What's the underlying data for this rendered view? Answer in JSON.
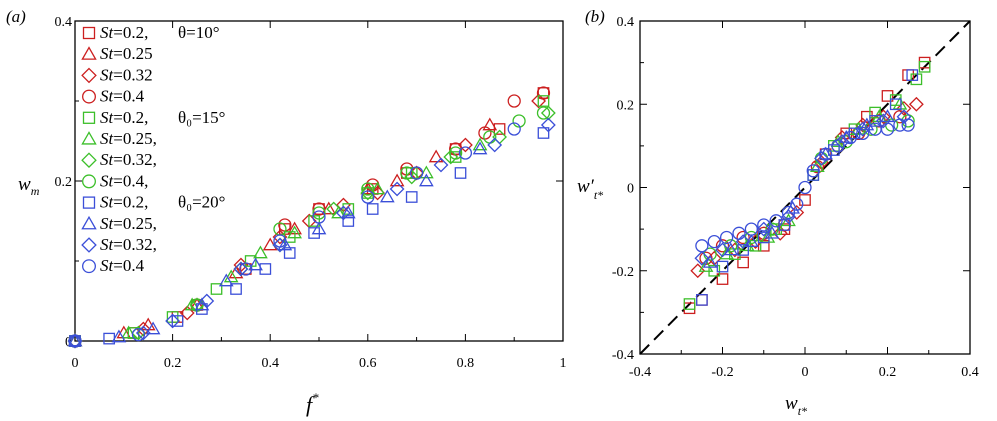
{
  "colors": {
    "red": "#cc1f1f",
    "green": "#3cbf2a",
    "blue": "#3b4fd8",
    "axis": "#000000"
  },
  "chart_data": [
    {
      "panel": "(a)",
      "type": "scatter",
      "xlabel": "f",
      "xlabel_sup": "*",
      "ylabel": "w",
      "ylabel_sub": "m",
      "xlim": [
        0,
        1
      ],
      "ylim": [
        0,
        0.4
      ],
      "xticks": [
        0,
        0.2,
        0.4,
        0.6,
        0.8,
        1
      ],
      "xtick_labels": [
        "0",
        "0.2",
        "0.4",
        "0.6",
        "0.8",
        "1"
      ],
      "yticks": [
        0,
        0.2,
        0.4
      ],
      "ytick_labels": [
        "0",
        "0.2",
        "0.4"
      ],
      "legend": [
        {
          "st": "St",
          "val": "=0.2,",
          "extra": "θ=10°",
          "marker": "square",
          "color": "red"
        },
        {
          "st": "St",
          "val": "=0.25",
          "extra": "",
          "marker": "triangle",
          "color": "red"
        },
        {
          "st": "St",
          "val": "=0.32",
          "extra": "",
          "marker": "diamond",
          "color": "red"
        },
        {
          "st": "St",
          "val": "=0.4",
          "extra": "",
          "marker": "circle",
          "color": "red"
        },
        {
          "st": "St",
          "val": "=0.2,",
          "extra": "θ₀=15°",
          "marker": "square",
          "color": "green"
        },
        {
          "st": "St",
          "val": "=0.25,",
          "extra": "",
          "marker": "triangle",
          "color": "green"
        },
        {
          "st": "St",
          "val": "=0.32,",
          "extra": "",
          "marker": "diamond",
          "color": "green"
        },
        {
          "st": "St",
          "val": "=0.4,",
          "extra": "",
          "marker": "circle",
          "color": "green"
        },
        {
          "st": "St",
          "val": "=0.2,",
          "extra": "θ₀=20°",
          "marker": "square",
          "color": "blue"
        },
        {
          "st": "St",
          "val": "=0.25,",
          "extra": "",
          "marker": "triangle",
          "color": "blue"
        },
        {
          "st": "St",
          "val": "=0.32,",
          "extra": "",
          "marker": "diamond",
          "color": "blue"
        },
        {
          "st": "St",
          "val": "=0.4",
          "extra": "",
          "marker": "circle",
          "color": "blue"
        }
      ],
      "series": [
        {
          "name": "St=0.2, θ=10°",
          "marker": "square",
          "color": "red",
          "x": [
            0,
            0.12,
            0.21,
            0.25,
            0.35,
            0.43,
            0.5,
            0.61,
            0.68,
            0.78,
            0.87,
            0.96
          ],
          "y": [
            0,
            0.01,
            0.03,
            0.045,
            0.09,
            0.14,
            0.165,
            0.19,
            0.21,
            0.24,
            0.265,
            0.31
          ]
        },
        {
          "name": "St=0.25",
          "marker": "triangle",
          "color": "red",
          "x": [
            0,
            0.1,
            0.15,
            0.25,
            0.33,
            0.4,
            0.45,
            0.52,
            0.6,
            0.66,
            0.74,
            0.85
          ],
          "y": [
            0,
            0.01,
            0.02,
            0.045,
            0.085,
            0.12,
            0.14,
            0.165,
            0.19,
            0.2,
            0.23,
            0.27
          ]
        },
        {
          "name": "St=0.32",
          "marker": "diamond",
          "color": "red",
          "x": [
            0,
            0.14,
            0.23,
            0.34,
            0.42,
            0.48,
            0.55,
            0.62,
            0.7,
            0.8,
            0.95
          ],
          "y": [
            0,
            0.015,
            0.035,
            0.095,
            0.13,
            0.15,
            0.17,
            0.185,
            0.21,
            0.245,
            0.3
          ]
        },
        {
          "name": "St=0.4",
          "marker": "circle",
          "color": "red",
          "x": [
            0,
            0.25,
            0.43,
            0.5,
            0.61,
            0.68,
            0.78,
            0.84,
            0.9,
            0.96
          ],
          "y": [
            0,
            0.045,
            0.145,
            0.165,
            0.195,
            0.215,
            0.24,
            0.26,
            0.3,
            0.31
          ]
        },
        {
          "name": "St=0.2, θ0=15°",
          "marker": "square",
          "color": "green",
          "x": [
            0,
            0.12,
            0.2,
            0.29,
            0.36,
            0.44,
            0.49,
            0.56,
            0.6,
            0.69,
            0.78,
            0.96
          ],
          "y": [
            0,
            0.01,
            0.03,
            0.065,
            0.1,
            0.13,
            0.15,
            0.165,
            0.185,
            0.21,
            0.23,
            0.3
          ]
        },
        {
          "name": "St=0.25,",
          "marker": "triangle",
          "color": "green",
          "x": [
            0,
            0.11,
            0.24,
            0.32,
            0.38,
            0.45,
            0.54,
            0.62,
            0.72,
            0.83
          ],
          "y": [
            0,
            0.01,
            0.045,
            0.08,
            0.11,
            0.135,
            0.16,
            0.19,
            0.21,
            0.245
          ]
        },
        {
          "name": "St=0.32,",
          "marker": "diamond",
          "color": "green",
          "x": [
            0,
            0.13,
            0.25,
            0.34,
            0.42,
            0.53,
            0.6,
            0.69,
            0.77,
            0.87,
            0.97
          ],
          "y": [
            0,
            0.01,
            0.045,
            0.09,
            0.12,
            0.165,
            0.185,
            0.205,
            0.23,
            0.255,
            0.285
          ]
        },
        {
          "name": "St=0.4,",
          "marker": "circle",
          "color": "green",
          "x": [
            0,
            0.25,
            0.42,
            0.5,
            0.6,
            0.68,
            0.78,
            0.85,
            0.91,
            0.96
          ],
          "y": [
            0,
            0.045,
            0.14,
            0.16,
            0.19,
            0.21,
            0.235,
            0.255,
            0.275,
            0.285
          ]
        },
        {
          "name": "St=0.2, θ0=20°",
          "marker": "square",
          "color": "blue",
          "x": [
            0,
            0.07,
            0.21,
            0.26,
            0.33,
            0.39,
            0.44,
            0.49,
            0.56,
            0.61,
            0.69,
            0.79,
            0.96
          ],
          "y": [
            0,
            0.003,
            0.025,
            0.04,
            0.065,
            0.09,
            0.11,
            0.135,
            0.15,
            0.165,
            0.18,
            0.21,
            0.26
          ]
        },
        {
          "name": "St=0.25,",
          "marker": "triangle",
          "color": "blue",
          "x": [
            0,
            0.09,
            0.16,
            0.26,
            0.31,
            0.37,
            0.43,
            0.5,
            0.56,
            0.64,
            0.72,
            0.83
          ],
          "y": [
            0,
            0.005,
            0.015,
            0.045,
            0.075,
            0.095,
            0.12,
            0.14,
            0.16,
            0.18,
            0.2,
            0.24
          ]
        },
        {
          "name": "St=0.32,",
          "marker": "diamond",
          "color": "blue",
          "x": [
            0,
            0.14,
            0.2,
            0.27,
            0.34,
            0.42,
            0.55,
            0.66,
            0.75,
            0.86,
            0.97
          ],
          "y": [
            0,
            0.01,
            0.025,
            0.05,
            0.09,
            0.12,
            0.16,
            0.19,
            0.22,
            0.245,
            0.27
          ]
        },
        {
          "name": "St=0.4",
          "marker": "circle",
          "color": "blue",
          "x": [
            0,
            0.13,
            0.35,
            0.42,
            0.5,
            0.6,
            0.7,
            0.8,
            0.9
          ],
          "y": [
            0,
            0.008,
            0.09,
            0.125,
            0.155,
            0.18,
            0.21,
            0.235,
            0.265
          ]
        }
      ]
    },
    {
      "panel": "(b)",
      "type": "scatter",
      "xlabel": "w",
      "xlabel_sub": "t*",
      "ylabel": "w′",
      "ylabel_sub": "t*",
      "xlim": [
        -0.4,
        0.4
      ],
      "ylim": [
        -0.4,
        0.4
      ],
      "xticks": [
        -0.4,
        -0.2,
        0,
        0.2,
        0.4
      ],
      "xtick_labels": [
        "-0.4",
        "-0.2",
        "0",
        "0.2",
        "0.4"
      ],
      "yticks": [
        -0.4,
        -0.2,
        0,
        0.2,
        0.4
      ],
      "ytick_labels": [
        "-0.4",
        "-0.2",
        "0",
        "0.2",
        "0.4"
      ],
      "reference_line": {
        "style": "dashed",
        "x": [
          -0.4,
          0.4
        ],
        "y": [
          -0.4,
          0.4
        ]
      },
      "series": [
        {
          "name": "θ=10° squares",
          "marker": "square",
          "color": "red",
          "x": [
            -0.28,
            -0.25,
            -0.2,
            -0.15,
            -0.1,
            -0.05,
            0,
            0.05,
            0.1,
            0.15,
            0.2,
            0.25,
            0.29
          ],
          "y": [
            -0.29,
            -0.27,
            -0.22,
            -0.18,
            -0.14,
            -0.1,
            -0.03,
            0.08,
            0.13,
            0.17,
            0.22,
            0.27,
            0.3
          ]
        },
        {
          "name": "θ=10° diamonds",
          "marker": "diamond",
          "color": "red",
          "x": [
            -0.26,
            -0.22,
            -0.17,
            -0.12,
            -0.06,
            -0.02,
            0.04,
            0.09,
            0.14,
            0.19,
            0.24,
            0.27
          ],
          "y": [
            -0.2,
            -0.17,
            -0.15,
            -0.13,
            -0.11,
            -0.06,
            0.06,
            0.12,
            0.15,
            0.17,
            0.19,
            0.2
          ]
        },
        {
          "name": "θ=10° circles",
          "marker": "circle",
          "color": "red",
          "x": [
            -0.24,
            -0.2,
            -0.15,
            -0.1,
            -0.05,
            0.03,
            0.08,
            0.13,
            0.18,
            0.23
          ],
          "y": [
            -0.17,
            -0.14,
            -0.12,
            -0.11,
            -0.09,
            0.05,
            0.1,
            0.13,
            0.16,
            0.17
          ]
        },
        {
          "name": "θ0=15° squares",
          "marker": "square",
          "color": "green",
          "x": [
            -0.28,
            -0.22,
            -0.17,
            -0.12,
            -0.07,
            0.02,
            0.07,
            0.12,
            0.17,
            0.22,
            0.27,
            0.29
          ],
          "y": [
            -0.28,
            -0.2,
            -0.16,
            -0.14,
            -0.1,
            0.03,
            0.1,
            0.14,
            0.18,
            0.21,
            0.26,
            0.29
          ]
        },
        {
          "name": "θ0=15° triangles",
          "marker": "triangle",
          "color": "green",
          "x": [
            -0.24,
            -0.19,
            -0.14,
            -0.09,
            -0.04,
            0.03,
            0.08,
            0.13,
            0.18,
            0.23
          ],
          "y": [
            -0.19,
            -0.16,
            -0.14,
            -0.12,
            -0.08,
            0.05,
            0.11,
            0.14,
            0.17,
            0.2
          ]
        },
        {
          "name": "θ0=15° circles",
          "marker": "circle",
          "color": "green",
          "x": [
            -0.23,
            -0.18,
            -0.13,
            -0.08,
            0.04,
            0.1,
            0.16,
            0.21,
            0.25
          ],
          "y": [
            -0.16,
            -0.14,
            -0.12,
            -0.1,
            0.07,
            0.11,
            0.14,
            0.15,
            0.16
          ]
        },
        {
          "name": "θ0=20° squares",
          "marker": "square",
          "color": "blue",
          "x": [
            -0.25,
            -0.2,
            -0.15,
            -0.1,
            -0.05,
            0.02,
            0.07,
            0.12,
            0.17,
            0.22,
            0.26
          ],
          "y": [
            -0.27,
            -0.19,
            -0.15,
            -0.12,
            -0.09,
            0.03,
            0.09,
            0.13,
            0.16,
            0.2,
            0.27
          ]
        },
        {
          "name": "θ0=20° triangles",
          "marker": "triangle",
          "color": "blue",
          "x": [
            -0.23,
            -0.18,
            -0.13,
            -0.08,
            -0.03,
            0.05,
            0.1,
            0.15,
            0.2
          ],
          "y": [
            -0.18,
            -0.15,
            -0.13,
            -0.11,
            -0.05,
            0.08,
            0.12,
            0.15,
            0.17
          ]
        },
        {
          "name": "θ0=20° diamonds",
          "marker": "diamond",
          "color": "blue",
          "x": [
            -0.25,
            -0.2,
            -0.15,
            -0.1,
            -0.04,
            0.04,
            0.09,
            0.14,
            0.19,
            0.24
          ],
          "y": [
            -0.17,
            -0.15,
            -0.13,
            -0.1,
            -0.07,
            0.07,
            0.11,
            0.14,
            0.16,
            0.17
          ]
        },
        {
          "name": "θ0=20° circles",
          "marker": "circle",
          "color": "blue",
          "x": [
            -0.25,
            -0.22,
            -0.19,
            -0.16,
            -0.13,
            -0.1,
            -0.07,
            -0.04,
            -0.02,
            0,
            0.02,
            0.05,
            0.08,
            0.11,
            0.14,
            0.17,
            0.2,
            0.23,
            0.25
          ],
          "y": [
            -0.14,
            -0.13,
            -0.12,
            -0.11,
            -0.1,
            -0.09,
            -0.08,
            -0.06,
            -0.04,
            0,
            0.04,
            0.08,
            0.1,
            0.12,
            0.13,
            0.14,
            0.14,
            0.15,
            0.15
          ]
        }
      ]
    }
  ]
}
